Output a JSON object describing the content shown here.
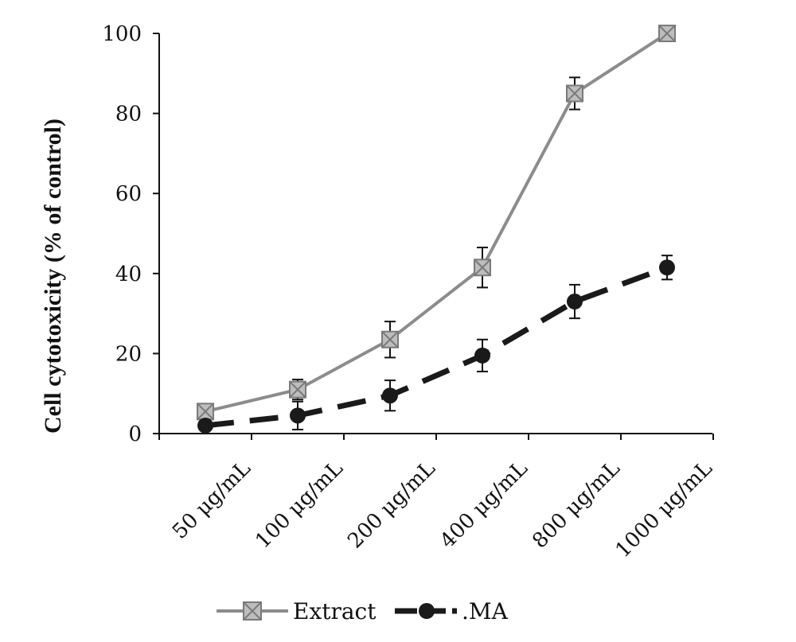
{
  "chart_data": {
    "type": "line",
    "title": "",
    "xlabel": "",
    "ylabel": "Cell cytotoxicity (% of control)",
    "categories": [
      "50 μg/mL",
      "100 μg/mL",
      "200 μg/mL",
      "400 μg/mL",
      "800 μg/mL",
      "1000 μg/mL"
    ],
    "ylim": [
      0,
      100
    ],
    "yticks": [
      0,
      20,
      40,
      60,
      80,
      100
    ],
    "grid": false,
    "legend_position": "bottom",
    "series": [
      {
        "name": "Extract",
        "values": [
          5.5,
          11,
          23.5,
          41.5,
          85,
          100
        ],
        "errors": [
          1,
          2.5,
          4.5,
          5,
          4,
          0.5
        ],
        "color": "#8c8c8c",
        "marker": "square-x",
        "dashed": false
      },
      {
        "name": ".MA",
        "values": [
          2,
          4.5,
          9.5,
          19.5,
          33,
          41.5
        ],
        "errors": [
          0.8,
          3.5,
          3.8,
          4,
          4.2,
          3
        ],
        "color": "#1a1a1a",
        "marker": "circle",
        "dashed": true
      }
    ]
  }
}
